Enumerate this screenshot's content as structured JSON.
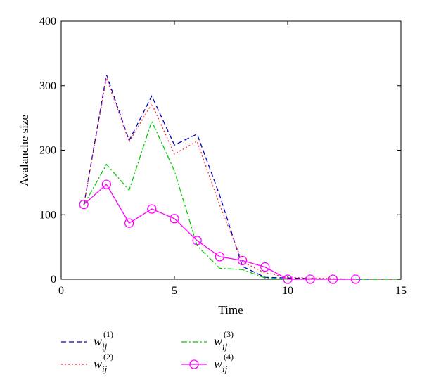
{
  "chart_data": {
    "type": "line",
    "title": "",
    "xlabel": "Time",
    "ylabel": "Avalanche size",
    "xlim": [
      0,
      15
    ],
    "ylim": [
      0,
      400
    ],
    "xticks": [
      0,
      5,
      10,
      15
    ],
    "yticks": [
      0,
      100,
      200,
      300,
      400
    ],
    "grid": false,
    "legend_position": "below-left",
    "x": [
      1,
      2,
      3,
      4,
      5,
      6,
      7,
      8,
      9,
      10,
      11,
      12,
      13,
      14,
      15
    ],
    "series": [
      {
        "name": "w_ij^(1)",
        "legend_base": "w",
        "legend_sub": "ij",
        "legend_sup": "(1)",
        "color": "#0000c8",
        "dash": "dashed",
        "marker": "none",
        "values": [
          115,
          317,
          215,
          284,
          208,
          225,
          130,
          20,
          3,
          2,
          1,
          0,
          0,
          0,
          0
        ]
      },
      {
        "name": "w_ij^(2)",
        "legend_base": "w",
        "legend_sub": "ij",
        "legend_sup": "(2)",
        "color": "#ff2a2a",
        "dash": "dotted",
        "marker": "none",
        "values": [
          115,
          312,
          213,
          272,
          194,
          214,
          115,
          27,
          10,
          3,
          2,
          1,
          0,
          0,
          0
        ]
      },
      {
        "name": "w_ij^(3)",
        "legend_base": "w",
        "legend_sub": "ij",
        "legend_sup": "(3)",
        "color": "#00cc00",
        "dash": "dashdot",
        "marker": "none",
        "values": [
          115,
          178,
          138,
          245,
          168,
          52,
          17,
          15,
          2,
          0,
          0,
          0,
          0,
          0,
          0
        ]
      },
      {
        "name": "w_ij^(4)",
        "legend_base": "w",
        "legend_sub": "ij",
        "legend_sup": "(4)",
        "color": "#ff00ff",
        "dash": "solid",
        "marker": "circle",
        "x": [
          1,
          2,
          3,
          4,
          5,
          6,
          7,
          8,
          9,
          10,
          11,
          12,
          13
        ],
        "values": [
          116,
          147,
          87,
          109,
          94,
          60,
          35,
          29,
          19,
          0,
          0,
          0,
          0
        ]
      }
    ]
  }
}
